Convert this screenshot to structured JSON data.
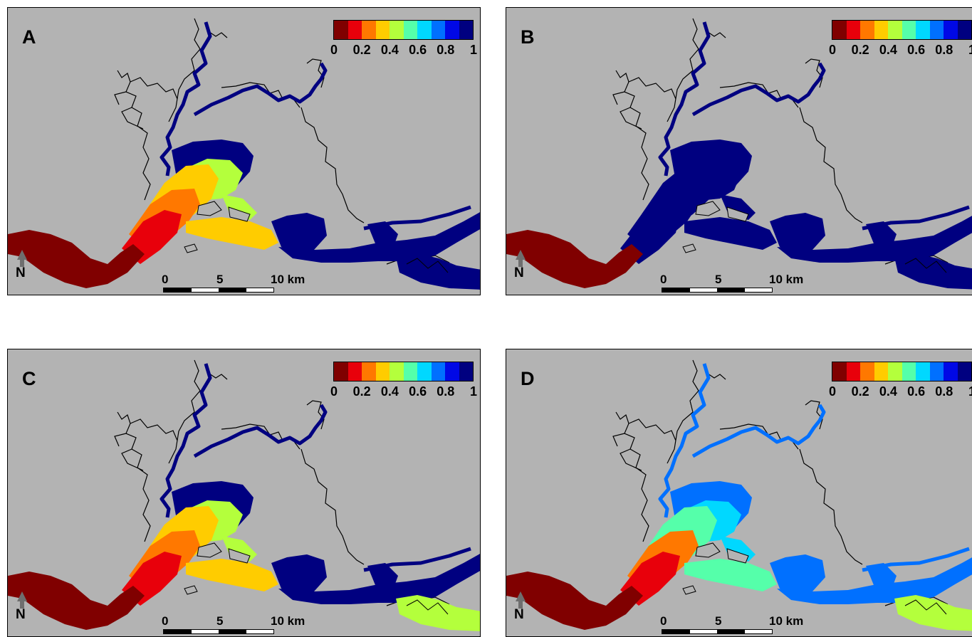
{
  "colorbar": {
    "colors": [
      "#800000",
      "#e8000b",
      "#ff7800",
      "#ffcc00",
      "#b4ff3c",
      "#55ffaa",
      "#00d8ff",
      "#0070ff",
      "#0008e6",
      "#000080"
    ],
    "ticks": [
      "0",
      "0.2",
      "0.4",
      "0.6",
      "0.8",
      "1"
    ]
  },
  "scale_bar": {
    "labels": [
      "0",
      "5",
      "10 km"
    ]
  },
  "north_label": "N",
  "colors": {
    "background": "#b3b3b3",
    "border": "#000000"
  },
  "panels": [
    {
      "label": "A",
      "estuary_fill": [
        "#800000",
        "#e8000b",
        "#ff7800",
        "#ffcc00",
        "#b4ff3c",
        "#000080"
      ],
      "channel": "#000080",
      "tidal_flat": "#000080"
    },
    {
      "label": "B",
      "estuary_fill": [
        "#800000",
        "#000080",
        "#000080",
        "#000080",
        "#000080",
        "#000080"
      ],
      "channel": "#000080",
      "tidal_flat": "#000080"
    },
    {
      "label": "C",
      "estuary_fill": [
        "#800000",
        "#e8000b",
        "#ff7800",
        "#ffcc00",
        "#b4ff3c",
        "#000080"
      ],
      "channel": "#000080",
      "tidal_flat": "#b4ff3c"
    },
    {
      "label": "D",
      "estuary_fill": [
        "#800000",
        "#e8000b",
        "#ff7800",
        "#55ffaa",
        "#00d8ff",
        "#0070ff"
      ],
      "channel": "#0070ff",
      "tidal_flat": "#b4ff3c"
    }
  ]
}
